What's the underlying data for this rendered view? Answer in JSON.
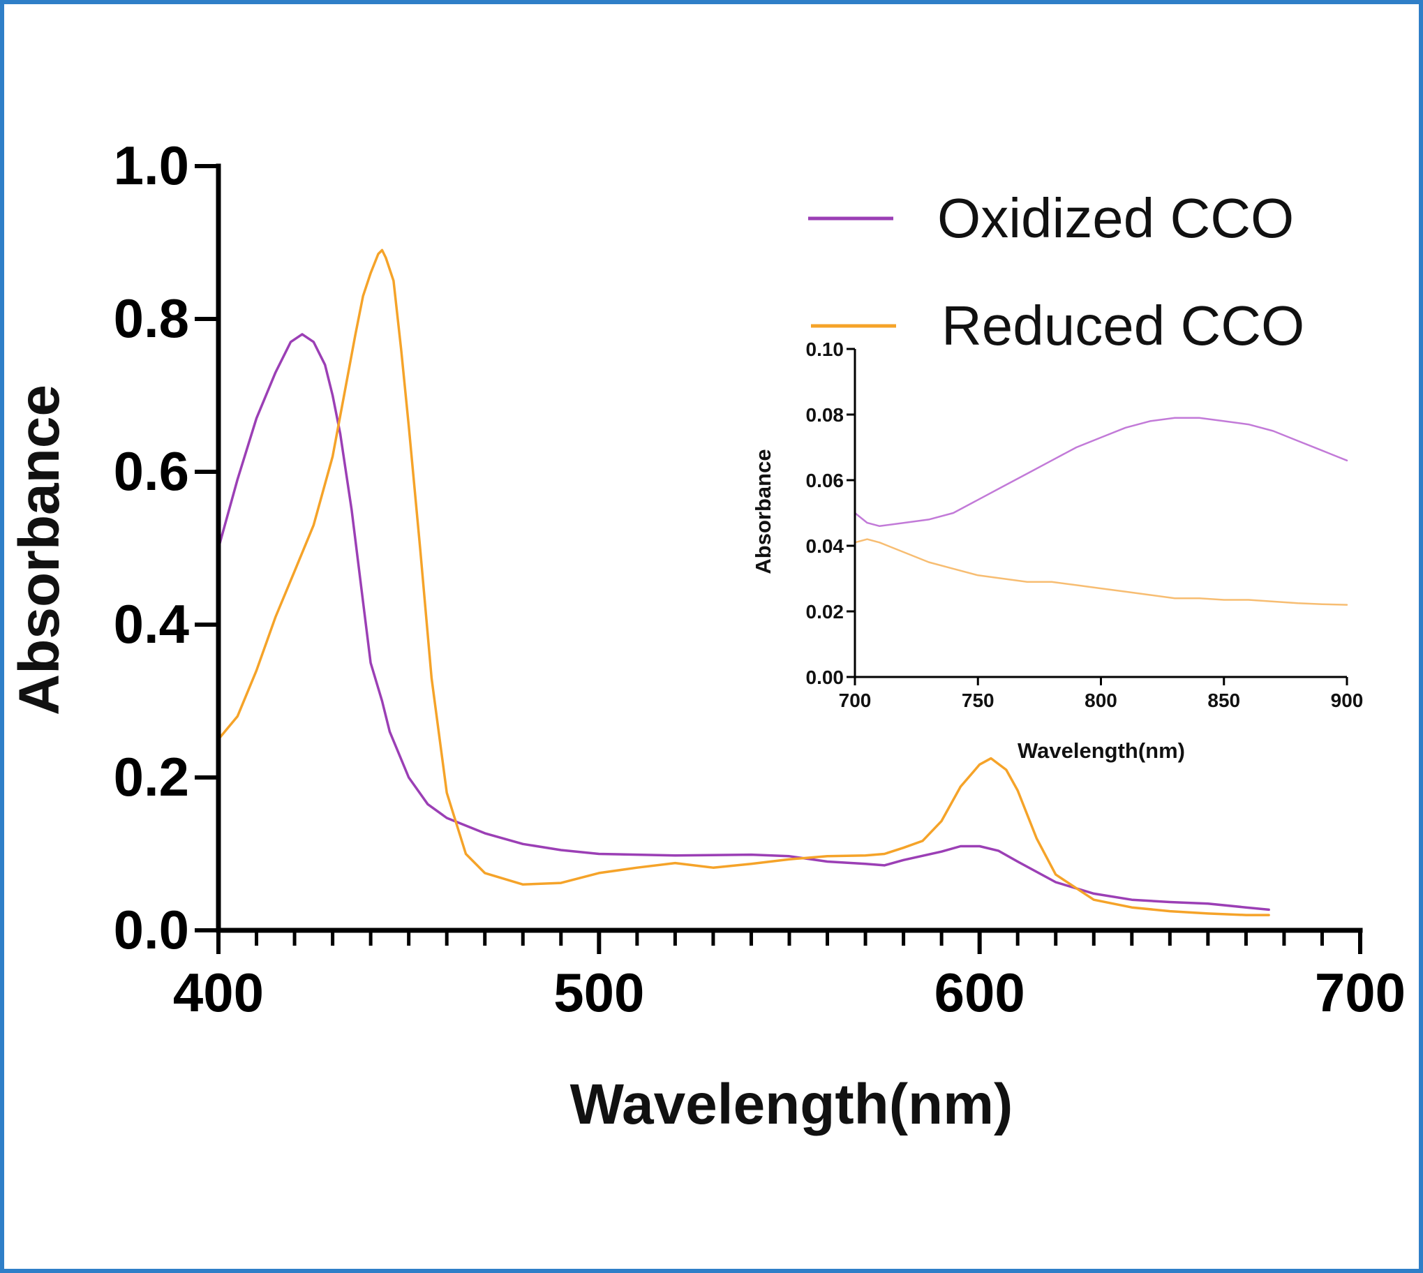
{
  "chart_data": [
    {
      "type": "line",
      "xlabel": "Wavelength(nm)",
      "ylabel": "Absorbance",
      "xlim": [
        400,
        700
      ],
      "ylim": [
        0,
        1.0
      ],
      "x_ticks": [
        "400",
        "500",
        "600",
        "700"
      ],
      "y_ticks": [
        "0.0",
        "0.2",
        "0.4",
        "0.6",
        "0.8",
        "1.0"
      ],
      "legend_position": "top-right",
      "series": [
        {
          "name": "Oxidized CCO",
          "color": "#9b3fb5",
          "x": [
            400,
            405,
            410,
            415,
            419,
            422,
            425,
            428,
            430,
            432,
            435,
            438,
            440,
            443,
            445,
            450,
            455,
            460,
            470,
            480,
            490,
            500,
            520,
            540,
            550,
            560,
            570,
            575,
            580,
            590,
            595,
            600,
            605,
            610,
            620,
            630,
            640,
            650,
            660,
            670,
            676
          ],
          "y": [
            0.5,
            0.59,
            0.67,
            0.73,
            0.77,
            0.78,
            0.77,
            0.74,
            0.7,
            0.65,
            0.55,
            0.43,
            0.35,
            0.3,
            0.26,
            0.2,
            0.165,
            0.147,
            0.127,
            0.113,
            0.105,
            0.1,
            0.098,
            0.099,
            0.097,
            0.09,
            0.087,
            0.085,
            0.092,
            0.103,
            0.11,
            0.11,
            0.104,
            0.09,
            0.063,
            0.048,
            0.04,
            0.037,
            0.035,
            0.03,
            0.027
          ]
        },
        {
          "name": "Reduced CCO",
          "color": "#f5a329",
          "x": [
            400,
            405,
            410,
            415,
            420,
            425,
            430,
            433,
            436,
            438,
            440,
            442,
            443,
            444,
            446,
            448,
            450,
            453,
            456,
            460,
            465,
            470,
            480,
            490,
            500,
            510,
            520,
            530,
            540,
            550,
            560,
            570,
            575,
            580,
            585,
            590,
            595,
            600,
            603,
            607,
            610,
            615,
            620,
            630,
            640,
            650,
            660,
            670,
            676
          ],
          "y": [
            0.25,
            0.28,
            0.34,
            0.41,
            0.47,
            0.53,
            0.62,
            0.7,
            0.78,
            0.83,
            0.86,
            0.885,
            0.89,
            0.88,
            0.85,
            0.76,
            0.66,
            0.5,
            0.33,
            0.18,
            0.1,
            0.075,
            0.06,
            0.062,
            0.075,
            0.082,
            0.088,
            0.082,
            0.087,
            0.093,
            0.097,
            0.098,
            0.1,
            0.108,
            0.117,
            0.143,
            0.188,
            0.217,
            0.225,
            0.21,
            0.183,
            0.12,
            0.073,
            0.04,
            0.03,
            0.025,
            0.022,
            0.02,
            0.02
          ]
        }
      ]
    },
    {
      "type": "line",
      "xlabel": "Wavelength(nm)",
      "ylabel": "Absorbance",
      "xlim": [
        700,
        900
      ],
      "ylim": [
        0,
        0.1
      ],
      "x_ticks": [
        "700",
        "750",
        "800",
        "850",
        "900"
      ],
      "y_ticks": [
        "0.00",
        "0.02",
        "0.04",
        "0.06",
        "0.08",
        "0.10"
      ],
      "series": [
        {
          "color": "#c27ad8",
          "x": [
            700,
            705,
            710,
            720,
            730,
            740,
            750,
            760,
            770,
            780,
            790,
            800,
            810,
            820,
            830,
            840,
            850,
            860,
            870,
            880,
            890,
            900
          ],
          "y": [
            0.05,
            0.047,
            0.046,
            0.047,
            0.048,
            0.05,
            0.054,
            0.058,
            0.062,
            0.066,
            0.07,
            0.073,
            0.076,
            0.078,
            0.079,
            0.079,
            0.078,
            0.077,
            0.075,
            0.072,
            0.069,
            0.066
          ]
        },
        {
          "color": "#f7bd72",
          "x": [
            700,
            705,
            710,
            720,
            730,
            740,
            750,
            760,
            770,
            780,
            790,
            800,
            810,
            820,
            830,
            840,
            850,
            860,
            870,
            880,
            890,
            900
          ],
          "y": [
            0.041,
            0.042,
            0.041,
            0.038,
            0.035,
            0.033,
            0.031,
            0.03,
            0.029,
            0.029,
            0.028,
            0.027,
            0.026,
            0.025,
            0.024,
            0.024,
            0.0235,
            0.0235,
            0.023,
            0.0225,
            0.0222,
            0.022
          ]
        }
      ]
    }
  ],
  "colors": {
    "frame": "#2f7fc8",
    "axis": "#000000"
  }
}
